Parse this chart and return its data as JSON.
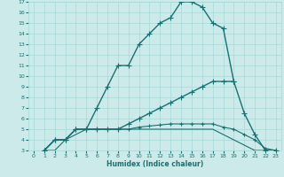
{
  "background_color": "#cceaea",
  "grid_color": "#a8d8d8",
  "line_color": "#1a7070",
  "xlabel": "Humidex (Indice chaleur)",
  "xlim": [
    -0.5,
    23.5
  ],
  "ylim": [
    3,
    17
  ],
  "yticks": [
    3,
    4,
    5,
    6,
    7,
    8,
    9,
    10,
    11,
    12,
    13,
    14,
    15,
    16,
    17
  ],
  "xticks": [
    0,
    1,
    2,
    3,
    4,
    5,
    6,
    7,
    8,
    9,
    10,
    11,
    12,
    13,
    14,
    15,
    16,
    17,
    18,
    19,
    20,
    21,
    22,
    23
  ],
  "series": [
    {
      "x": [
        1,
        2,
        3,
        4,
        5,
        6,
        7,
        8,
        9,
        10,
        11,
        12,
        13,
        14,
        15,
        16,
        17,
        18,
        19
      ],
      "y": [
        3.0,
        4.0,
        4.0,
        5.0,
        5.0,
        7.0,
        9.0,
        11.0,
        11.0,
        13.0,
        14.0,
        15.0,
        15.5,
        17.0,
        17.0,
        16.5,
        15.0,
        14.5,
        9.5
      ],
      "marker": "+",
      "markersize": 4,
      "linewidth": 1.0
    },
    {
      "x": [
        1,
        2,
        3,
        4,
        5,
        6,
        7,
        8,
        9,
        10,
        11,
        12,
        13,
        14,
        15,
        16,
        17,
        18,
        19,
        20,
        21,
        22,
        23
      ],
      "y": [
        3.0,
        4.0,
        4.0,
        5.0,
        5.0,
        5.0,
        5.0,
        5.0,
        5.5,
        6.0,
        6.5,
        7.0,
        7.5,
        8.0,
        8.5,
        9.0,
        9.5,
        9.5,
        9.5,
        6.5,
        4.5,
        3.0,
        3.0
      ],
      "marker": "+",
      "markersize": 4,
      "linewidth": 1.0
    },
    {
      "x": [
        1,
        2,
        3,
        4,
        5,
        6,
        7,
        8,
        9,
        10,
        11,
        12,
        13,
        14,
        15,
        16,
        17,
        18,
        19,
        20,
        21,
        22,
        23
      ],
      "y": [
        3.0,
        4.0,
        4.0,
        5.0,
        5.0,
        5.0,
        5.0,
        5.0,
        5.0,
        5.2,
        5.3,
        5.4,
        5.5,
        5.5,
        5.5,
        5.5,
        5.5,
        5.2,
        5.0,
        4.5,
        4.0,
        3.2,
        3.0
      ],
      "marker": "+",
      "markersize": 3,
      "linewidth": 0.8
    },
    {
      "x": [
        1,
        2,
        3,
        4,
        5,
        6,
        7,
        8,
        9,
        10,
        11,
        12,
        13,
        14,
        15,
        16,
        17,
        18,
        19,
        20,
        21,
        22,
        23
      ],
      "y": [
        3.0,
        3.0,
        4.0,
        4.5,
        5.0,
        5.0,
        5.0,
        5.0,
        5.0,
        5.0,
        5.0,
        5.0,
        5.0,
        5.0,
        5.0,
        5.0,
        5.0,
        4.5,
        4.0,
        3.5,
        3.0,
        3.0,
        3.0
      ],
      "marker": null,
      "markersize": 0,
      "linewidth": 0.8
    }
  ]
}
